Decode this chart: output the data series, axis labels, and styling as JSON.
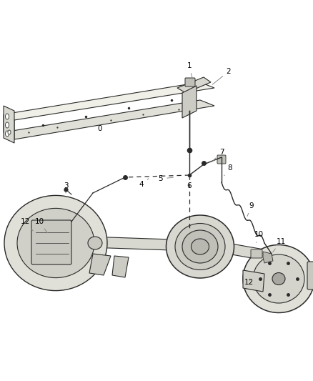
{
  "background_color": "#ffffff",
  "fig_width": 4.38,
  "fig_height": 5.33,
  "dpi": 100,
  "line_color": "#2a2a2a",
  "gray_fill": "#e8e8e8",
  "dark_fill": "#c8c8c8",
  "mid_fill": "#d8d8d8",
  "label_fontsize": 7.5,
  "leader_color": "#888888"
}
